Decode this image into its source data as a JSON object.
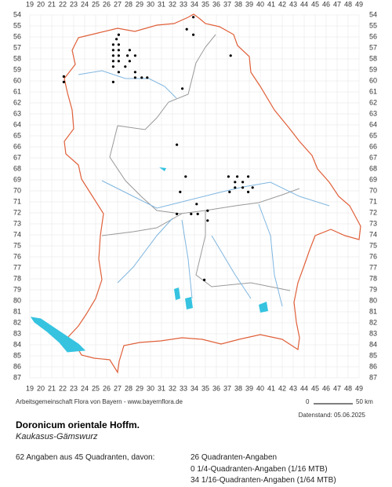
{
  "map": {
    "col_labels": [
      19,
      20,
      21,
      22,
      23,
      24,
      25,
      26,
      27,
      28,
      29,
      30,
      31,
      32,
      33,
      34,
      35,
      36,
      37,
      38,
      39,
      40,
      41,
      42,
      43,
      44,
      45,
      46,
      47,
      48,
      49
    ],
    "row_labels": [
      54,
      55,
      56,
      57,
      58,
      59,
      60,
      61,
      62,
      63,
      64,
      65,
      66,
      67,
      68,
      69,
      70,
      71,
      72,
      73,
      74,
      75,
      76,
      77,
      78,
      79,
      80,
      81,
      82,
      83,
      84,
      85,
      86,
      87
    ],
    "points": [
      [
        33.9,
        54.2
      ],
      [
        33.3,
        55.3
      ],
      [
        33.9,
        55.8
      ],
      [
        27.1,
        55.8
      ],
      [
        26.9,
        56.2
      ],
      [
        26.6,
        56.7
      ],
      [
        27.1,
        56.7
      ],
      [
        26.6,
        57.2
      ],
      [
        27.1,
        57.2
      ],
      [
        28.1,
        57.2
      ],
      [
        26.6,
        57.7
      ],
      [
        27.1,
        57.7
      ],
      [
        27.9,
        57.7
      ],
      [
        28.6,
        57.7
      ],
      [
        26.6,
        58.2
      ],
      [
        27.1,
        58.2
      ],
      [
        28.1,
        58.2
      ],
      [
        26.6,
        58.7
      ],
      [
        27.7,
        58.7
      ],
      [
        28.6,
        59.2
      ],
      [
        27.1,
        59.2
      ],
      [
        29.2,
        59.7
      ],
      [
        29.7,
        59.7
      ],
      [
        28.6,
        59.7
      ],
      [
        26.6,
        60.1
      ],
      [
        22.1,
        59.6
      ],
      [
        22.1,
        60.1
      ],
      [
        37.3,
        57.7
      ],
      [
        32.9,
        60.7
      ],
      [
        32.4,
        65.8
      ],
      [
        33.2,
        68.7
      ],
      [
        32.7,
        70.1
      ],
      [
        37.1,
        68.7
      ],
      [
        37.9,
        68.7
      ],
      [
        38.9,
        68.7
      ],
      [
        37.7,
        69.2
      ],
      [
        38.4,
        69.2
      ],
      [
        37.7,
        69.7
      ],
      [
        38.4,
        69.7
      ],
      [
        39.3,
        69.7
      ],
      [
        38.9,
        70.1
      ],
      [
        37.2,
        70.1
      ],
      [
        34.2,
        71.2
      ],
      [
        33.7,
        72.1
      ],
      [
        34.3,
        72.1
      ],
      [
        35.2,
        71.8
      ],
      [
        35.2,
        72.7
      ],
      [
        32.4,
        72.1
      ],
      [
        34.9,
        78.1
      ]
    ]
  },
  "footer": {
    "credit": "Arbeitsgemeinschaft Flora von Bayern - www.bayernflora.de",
    "scale_start": "0",
    "scale_end": "50 km",
    "date": "Datenstand: 05.06.2025",
    "species": "Doronicum orientale Hoffm.",
    "common_name": "Kaukasus-Gämswurz",
    "summary": "62 Angaben aus 45 Quadranten, davon:",
    "stats": [
      "26 Quadranten-Angaben",
      "0 1/4-Quadranten-Angaben (1/16 MTB)",
      "34 1/16-Quadranten-Angaben (1/64 MTB)"
    ]
  }
}
